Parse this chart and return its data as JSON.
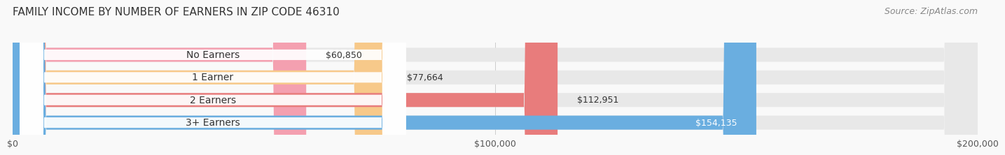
{
  "title": "FAMILY INCOME BY NUMBER OF EARNERS IN ZIP CODE 46310",
  "source": "Source: ZipAtlas.com",
  "categories": [
    "No Earners",
    "1 Earner",
    "2 Earners",
    "3+ Earners"
  ],
  "values": [
    60850,
    77664,
    112951,
    154135
  ],
  "bar_colors": [
    "#f4a0b0",
    "#f7c98a",
    "#e87c7c",
    "#6aaee0"
  ],
  "bar_bg_color": "#e8e8e8",
  "label_colors": [
    "#555555",
    "#555555",
    "#555555",
    "#ffffff"
  ],
  "value_labels": [
    "$60,850",
    "$77,664",
    "$112,951",
    "$154,135"
  ],
  "xlim": [
    0,
    200000
  ],
  "xticks": [
    0,
    100000,
    200000
  ],
  "xtick_labels": [
    "$0",
    "$100,000",
    "$200,000"
  ],
  "title_fontsize": 11,
  "source_fontsize": 9,
  "label_fontsize": 10,
  "value_fontsize": 9,
  "background_color": "#f9f9f9"
}
